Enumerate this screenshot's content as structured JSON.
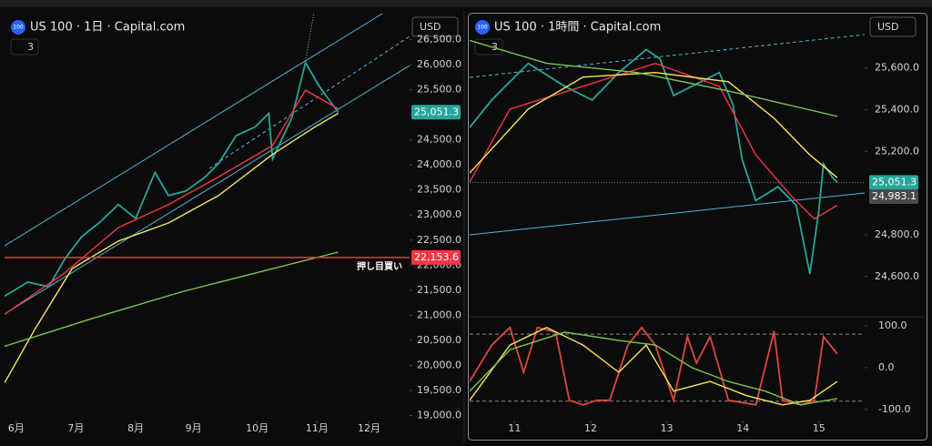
{
  "chart_data": [
    {
      "type": "line",
      "symbol_icon": "100",
      "title": "US 100 · 1日 · Capital.com",
      "currency": "USD",
      "indicator_count": "3",
      "xlim": [
        -6,
        204
      ],
      "xticks": [
        {
          "value": 0,
          "label": "6月"
        },
        {
          "value": 31,
          "label": "7月"
        },
        {
          "value": 62,
          "label": "8月"
        },
        {
          "value": 92,
          "label": "9月"
        },
        {
          "value": 125,
          "label": "10月"
        },
        {
          "value": 156,
          "label": "11月"
        },
        {
          "value": 183,
          "label": "12月"
        }
      ],
      "ylim": [
        18900,
        26600
      ],
      "yticks": [
        {
          "value": 26500,
          "label": "26,500.0"
        },
        {
          "value": 26000,
          "label": "26,000.0"
        },
        {
          "value": 25500,
          "label": "25,500.0"
        },
        {
          "value": 25000,
          "label": "25,000.0"
        },
        {
          "value": 24500,
          "label": "24,500.0"
        },
        {
          "value": 24000,
          "label": "24,000.0"
        },
        {
          "value": 23500,
          "label": "23,500.0"
        },
        {
          "value": 23000,
          "label": "23,000.0"
        },
        {
          "value": 22500,
          "label": "22,500.0"
        },
        {
          "value": 22000,
          "label": "22,000.0"
        },
        {
          "value": 21500,
          "label": "21,500.0"
        },
        {
          "value": 21000,
          "label": "21,000.0"
        },
        {
          "value": 20500,
          "label": "20,500.0"
        },
        {
          "value": 20000,
          "label": "20,000.0"
        },
        {
          "value": 19500,
          "label": "19,500.0"
        },
        {
          "value": 19000,
          "label": "19,000.0"
        }
      ],
      "series": [
        {
          "color": "#26a69a",
          "x": [
            -6,
            6,
            17,
            25,
            34,
            43,
            53,
            62,
            72,
            79,
            88,
            98,
            105,
            114,
            124,
            131,
            133,
            143,
            150,
            157,
            162,
            167
          ],
          "values": [
            21380,
            21660,
            21570,
            22110,
            22570,
            22840,
            23210,
            22930,
            23850,
            23390,
            23480,
            23760,
            24030,
            24580,
            24760,
            25030,
            24120,
            24940,
            26040,
            25580,
            25310,
            25050
          ]
        },
        {
          "color": "#f23645",
          "x": [
            -6,
            25,
            53,
            79,
            105,
            133,
            150,
            167
          ],
          "values": [
            21020,
            21840,
            22750,
            23210,
            23760,
            24390,
            25490,
            25120
          ]
        },
        {
          "color": "#f5e663",
          "x": [
            -6,
            10,
            29,
            53,
            79,
            105,
            133,
            155,
            167
          ],
          "values": [
            19650,
            20740,
            21930,
            22480,
            22840,
            23390,
            24210,
            24760,
            25030
          ]
        },
        {
          "color": "#7cc44f",
          "x": [
            -6,
            39,
            86,
            133,
            167
          ],
          "values": [
            20380,
            20930,
            21470,
            21930,
            22260
          ]
        }
      ],
      "price_tags": [
        {
          "value": 22153.6,
          "label": "22,153.6",
          "color": "#f23645",
          "line": true
        },
        {
          "value": 25051.3,
          "label": "25,051.3",
          "color": "#26a69a",
          "line": false
        }
      ],
      "hline_text": "押し目買い"
    },
    {
      "type": "line",
      "symbol_icon": "100",
      "title": "US 100 · 1時間 · Capital.com",
      "currency": "USD",
      "indicator_count": "3",
      "xlim": [
        10.41,
        15.6
      ],
      "xticks": [
        11,
        12,
        13,
        14,
        15
      ],
      "ylim": [
        24420,
        25760
      ],
      "yticks": [
        {
          "value": 25600,
          "label": "25,600.0"
        },
        {
          "value": 25400,
          "label": "25,400.0"
        },
        {
          "value": 25200,
          "label": "25,200.0"
        },
        {
          "value": 24800,
          "label": "24,800.0"
        },
        {
          "value": 24600,
          "label": "24,600.0"
        }
      ],
      "series": [
        {
          "color": "#26a69a",
          "x": [
            10.41,
            10.7,
            11.18,
            11.66,
            12.02,
            12.37,
            12.73,
            12.91,
            13.09,
            13.45,
            13.69,
            13.87,
            13.99,
            14.17,
            14.46,
            14.7,
            14.88,
            15.0,
            15.06,
            15.18,
            15.24
          ],
          "values": [
            25315,
            25446,
            25622,
            25512,
            25446,
            25578,
            25688,
            25644,
            25468,
            25534,
            25578,
            25425,
            25161,
            24964,
            25030,
            24942,
            24613,
            24920,
            25140,
            25074,
            25051
          ]
        },
        {
          "color": "#f23645",
          "x": [
            10.41,
            10.94,
            11.9,
            12.85,
            13.69,
            14.17,
            14.64,
            14.94,
            15.24
          ],
          "values": [
            25052,
            25403,
            25512,
            25622,
            25512,
            25183,
            24985,
            24876,
            24942
          ]
        },
        {
          "color": "#f5e663",
          "x": [
            10.41,
            11.18,
            11.9,
            12.85,
            13.81,
            14.41,
            14.88,
            15.24
          ],
          "values": [
            25096,
            25403,
            25556,
            25578,
            25534,
            25359,
            25183,
            25074
          ]
        },
        {
          "color": "#7cc44f",
          "x": [
            10.41,
            11.42,
            12.61,
            13.81,
            15.24
          ],
          "values": [
            25732,
            25622,
            25578,
            25490,
            25368
          ]
        }
      ],
      "price_tags": [
        {
          "value": 25051.3,
          "label": "25,051.3",
          "color": "#26a69a",
          "line": true
        },
        {
          "value": 24983.1,
          "label": "24,983.1",
          "color": "#4a4a4a",
          "line": false
        }
      ]
    },
    {
      "type": "line",
      "xlim": [
        10.41,
        15.6
      ],
      "ylim": [
        -122,
        113
      ],
      "yticks": [
        {
          "value": 100,
          "label": "100.0"
        },
        {
          "value": 0,
          "label": "0.0"
        },
        {
          "value": -100,
          "label": "-100.0"
        }
      ],
      "levels": [
        80,
        -80
      ],
      "series": [
        {
          "color": "#e0473f",
          "x": [
            10.41,
            10.7,
            10.94,
            11.12,
            11.3,
            11.54,
            11.72,
            11.9,
            12.08,
            12.25,
            12.49,
            12.67,
            12.85,
            13.09,
            13.27,
            13.39,
            13.57,
            13.81,
            14.17,
            14.41,
            14.52,
            14.76,
            14.94,
            15.06,
            15.24
          ],
          "values": [
            -33,
            54,
            96,
            -11,
            96,
            85,
            -78,
            -89,
            -78,
            -78,
            54,
            96,
            54,
            -78,
            74,
            11,
            74,
            -78,
            -89,
            87,
            -78,
            -89,
            -78,
            74,
            33
          ]
        },
        {
          "color": "#f5e663",
          "x": [
            10.41,
            10.94,
            11.42,
            11.9,
            12.37,
            12.73,
            13.09,
            13.57,
            14.05,
            14.52,
            14.88,
            15.24
          ],
          "values": [
            -78,
            54,
            96,
            54,
            -11,
            54,
            -56,
            -33,
            -67,
            -89,
            -78,
            -33
          ]
        },
        {
          "color": "#7cc44f",
          "x": [
            10.41,
            10.94,
            11.66,
            12.37,
            12.85,
            13.33,
            13.81,
            14.29,
            14.76,
            15.24
          ],
          "values": [
            -56,
            43,
            85,
            65,
            54,
            0,
            -33,
            -56,
            -89,
            -74
          ]
        }
      ]
    }
  ]
}
